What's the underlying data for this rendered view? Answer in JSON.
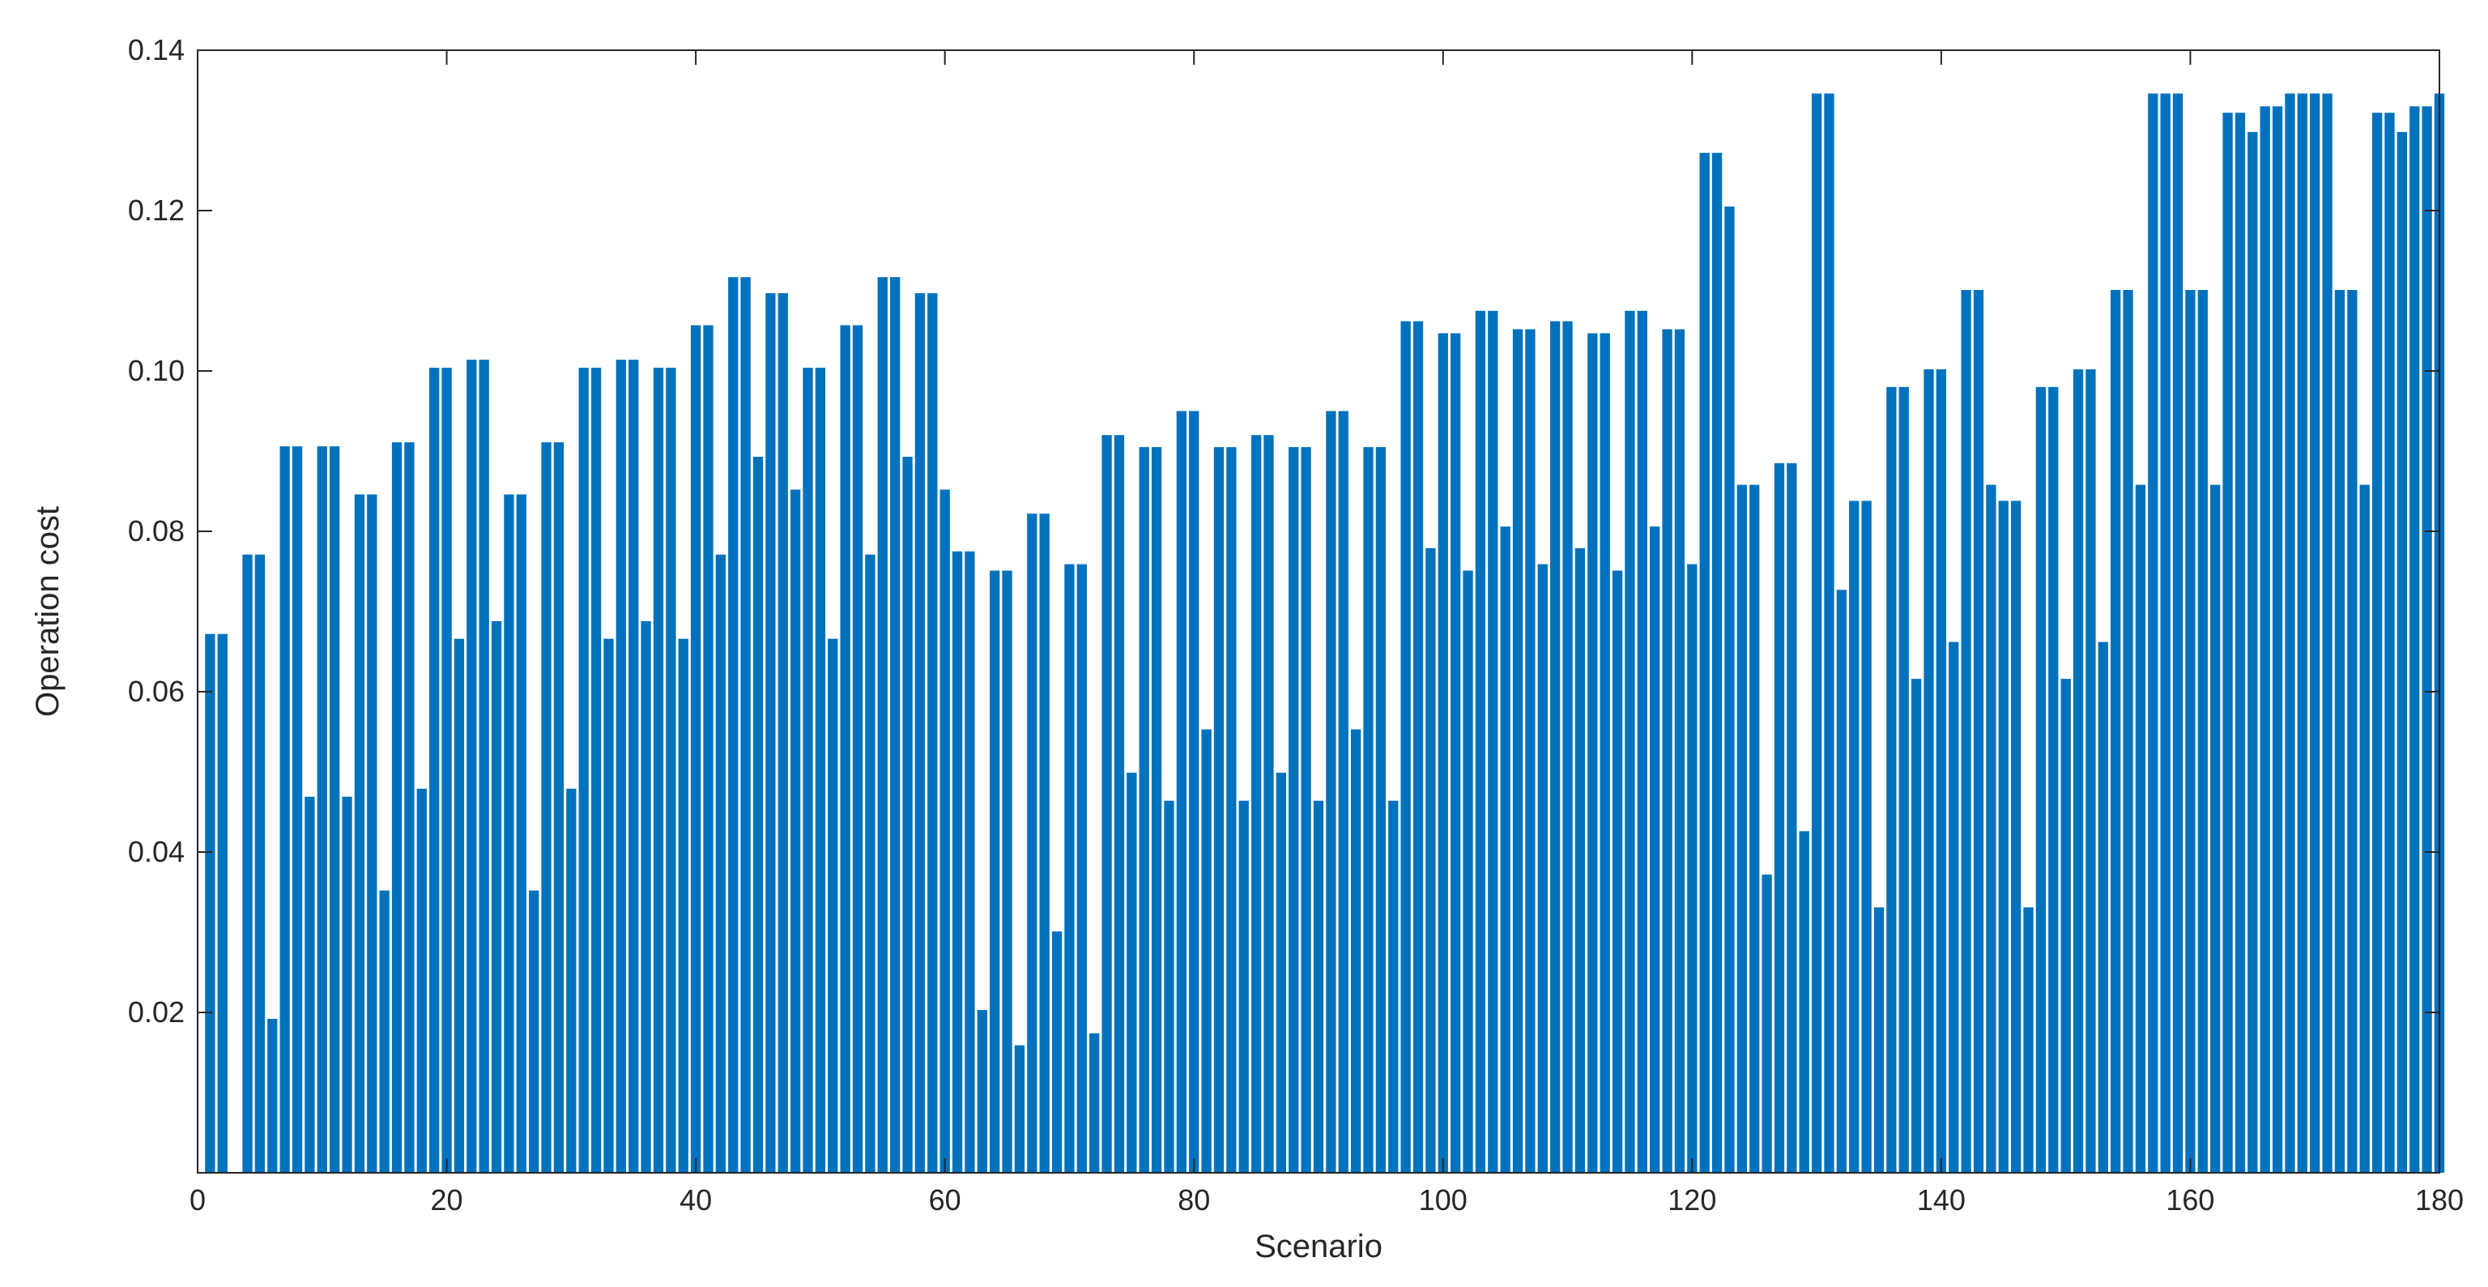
{
  "chart_data": {
    "type": "bar",
    "title": "",
    "xlabel": "Scenario",
    "ylabel": "Operation cost",
    "xlim": [
      0,
      180
    ],
    "ylim": [
      0,
      0.14
    ],
    "x_ticks": [
      0,
      20,
      40,
      60,
      80,
      100,
      120,
      140,
      160,
      180
    ],
    "x_tick_labels": [
      "0",
      "20",
      "40",
      "60",
      "80",
      "100",
      "120",
      "140",
      "160",
      "180"
    ],
    "y_ticks": [
      0.02,
      0.04,
      0.06,
      0.08,
      0.1,
      0.12,
      0.14
    ],
    "y_tick_labels": [
      "0.02",
      "0.04",
      "0.06",
      "0.08",
      "0.10",
      "0.12",
      "0.14"
    ],
    "grid": false,
    "bar_color": "#0072BD",
    "x": [
      1,
      2,
      3,
      4,
      5,
      6,
      7,
      8,
      9,
      10,
      11,
      12,
      13,
      14,
      15,
      16,
      17,
      18,
      19,
      20,
      21,
      22,
      23,
      24,
      25,
      26,
      27,
      28,
      29,
      30,
      31,
      32,
      33,
      34,
      35,
      36,
      37,
      38,
      39,
      40,
      41,
      42,
      43,
      44,
      45,
      46,
      47,
      48,
      49,
      50,
      51,
      52,
      53,
      54,
      55,
      56,
      57,
      58,
      59,
      60,
      61,
      62,
      63,
      64,
      65,
      66,
      67,
      68,
      69,
      70,
      71,
      72,
      73,
      74,
      75,
      76,
      77,
      78,
      79,
      80,
      81,
      82,
      83,
      84,
      85,
      86,
      87,
      88,
      89,
      90,
      91,
      92,
      93,
      94,
      95,
      96,
      97,
      98,
      99,
      100,
      101,
      102,
      103,
      104,
      105,
      106,
      107,
      108,
      109,
      110,
      111,
      112,
      113,
      114,
      115,
      116,
      117,
      118,
      119,
      120,
      121,
      122,
      123,
      124,
      125,
      126,
      127,
      128,
      129,
      130,
      131,
      132,
      133,
      134,
      135,
      136,
      137,
      138,
      139,
      140,
      141,
      142,
      143,
      144,
      145,
      146,
      147,
      148,
      149,
      150,
      151,
      152,
      153,
      154,
      155,
      156,
      157,
      158,
      159,
      160,
      161,
      162,
      163,
      164,
      165,
      166,
      167,
      168,
      169,
      170,
      171,
      172,
      173,
      174,
      175,
      176,
      177,
      178,
      179,
      180
    ],
    "values": [
      0.0672,
      0.0672,
      0,
      0.0771,
      0.0771,
      0.0192,
      0.0906,
      0.0906,
      0.0469,
      0.0906,
      0.0906,
      0.0469,
      0.0846,
      0.0846,
      0.0352,
      0.0911,
      0.0911,
      0.0479,
      0.1004,
      0.1004,
      0.0666,
      0.1014,
      0.1014,
      0.0688,
      0.0846,
      0.0846,
      0.0352,
      0.0911,
      0.0911,
      0.0479,
      0.1004,
      0.1004,
      0.0666,
      0.1014,
      0.1014,
      0.0688,
      0.1004,
      0.1004,
      0.0666,
      0.1057,
      0.1057,
      0.0771,
      0.1117,
      0.1117,
      0.0893,
      0.1097,
      0.1097,
      0.0852,
      0.1004,
      0.1004,
      0.0666,
      0.1057,
      0.1057,
      0.0771,
      0.1117,
      0.1117,
      0.0893,
      0.1097,
      0.1097,
      0.0852,
      0.0775,
      0.0775,
      0.0203,
      0.0751,
      0.0751,
      0.0159,
      0.0822,
      0.0822,
      0.0301,
      0.0759,
      0.0759,
      0.0174,
      0.092,
      0.092,
      0.0499,
      0.0905,
      0.0905,
      0.0464,
      0.095,
      0.095,
      0.0553,
      0.0905,
      0.0905,
      0.0464,
      0.092,
      0.092,
      0.0499,
      0.0905,
      0.0905,
      0.0464,
      0.095,
      0.095,
      0.0553,
      0.0905,
      0.0905,
      0.0464,
      0.1062,
      0.1062,
      0.0779,
      0.1047,
      0.1047,
      0.0751,
      0.1075,
      0.1075,
      0.0806,
      0.1052,
      0.1052,
      0.0759,
      0.1062,
      0.1062,
      0.0779,
      0.1047,
      0.1047,
      0.0751,
      0.1075,
      0.1075,
      0.0806,
      0.1052,
      0.1052,
      0.0759,
      0.1272,
      0.1272,
      0.1205,
      0.0858,
      0.0858,
      0.0372,
      0.0885,
      0.0885,
      0.0426,
      0.1346,
      0.1346,
      0.0727,
      0.0838,
      0.0838,
      0.0331,
      0.098,
      0.098,
      0.0616,
      0.1002,
      0.1002,
      0.0662,
      0.1101,
      0.1101,
      0.0858,
      0.0838,
      0.0838,
      0.0331,
      0.098,
      0.098,
      0.0616,
      0.1002,
      0.1002,
      0.0662,
      0.1101,
      0.1101,
      0.0858,
      0.1346,
      0.1346,
      0.1346,
      0.1101,
      0.1101,
      0.0858,
      0.1322,
      0.1322,
      0.1298,
      0.133,
      0.133,
      0.1346,
      0.1346,
      0.1346,
      0.1346,
      0.1101,
      0.1101,
      0.0858,
      0.1322,
      0.1322,
      0.1298,
      0.133,
      0.133,
      0.1346
    ]
  }
}
